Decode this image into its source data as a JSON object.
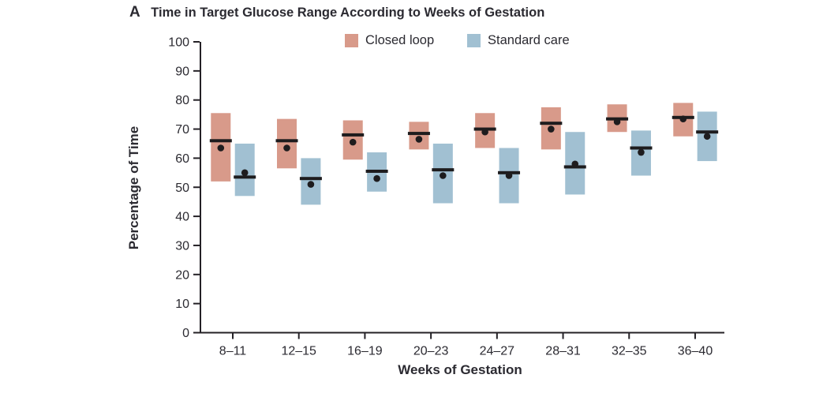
{
  "figure": {
    "panel_label": "A",
    "title": "Time in Target Glucose Range According to Weeks of Gestation"
  },
  "legend": {
    "items": [
      {
        "label": "Closed loop",
        "color": "#d89a8a"
      },
      {
        "label": "Standard care",
        "color": "#a1c0d2"
      }
    ]
  },
  "colors": {
    "closed_loop": "#d89a8a",
    "standard_care": "#a1c0d2",
    "axis": "#242126",
    "text": "#2b2a31",
    "marker": "#1e1c1e"
  },
  "chart_data": {
    "type": "boxplot",
    "title": "Time in Target Glucose Range According to Weeks of Gestation",
    "xlabel": "Weeks of Gestation",
    "ylabel": "Percentage of Time",
    "ylim": [
      0,
      100
    ],
    "ytick_step": 10,
    "grid": false,
    "legend_position": "top",
    "categories": [
      "8–11",
      "12–15",
      "16–19",
      "20–23",
      "24–27",
      "28–31",
      "32–35",
      "36–40"
    ],
    "series": [
      {
        "name": "Closed loop",
        "color": "#d89a8a",
        "boxes": [
          {
            "q1": 52,
            "median": 66,
            "q3": 75.5,
            "mean": 63.5
          },
          {
            "q1": 56.5,
            "median": 66,
            "q3": 73.5,
            "mean": 63.5
          },
          {
            "q1": 59.5,
            "median": 68,
            "q3": 73,
            "mean": 65.5
          },
          {
            "q1": 63,
            "median": 68.5,
            "q3": 72.5,
            "mean": 66.5
          },
          {
            "q1": 63.5,
            "median": 70,
            "q3": 75.5,
            "mean": 69
          },
          {
            "q1": 63,
            "median": 72,
            "q3": 77.5,
            "mean": 70
          },
          {
            "q1": 69,
            "median": 73.5,
            "q3": 78.5,
            "mean": 72.5
          },
          {
            "q1": 67.5,
            "median": 74,
            "q3": 79,
            "mean": 73.5
          }
        ]
      },
      {
        "name": "Standard care",
        "color": "#a1c0d2",
        "boxes": [
          {
            "q1": 47,
            "median": 53.5,
            "q3": 65,
            "mean": 55
          },
          {
            "q1": 44,
            "median": 53,
            "q3": 60,
            "mean": 51
          },
          {
            "q1": 48.5,
            "median": 55.5,
            "q3": 62,
            "mean": 53
          },
          {
            "q1": 44.5,
            "median": 56,
            "q3": 65,
            "mean": 54
          },
          {
            "q1": 44.5,
            "median": 55,
            "q3": 63.5,
            "mean": 54
          },
          {
            "q1": 47.5,
            "median": 57,
            "q3": 69,
            "mean": 58
          },
          {
            "q1": 54,
            "median": 63.5,
            "q3": 69.5,
            "mean": 62
          },
          {
            "q1": 59,
            "median": 69,
            "q3": 76,
            "mean": 67.5
          }
        ]
      }
    ]
  }
}
